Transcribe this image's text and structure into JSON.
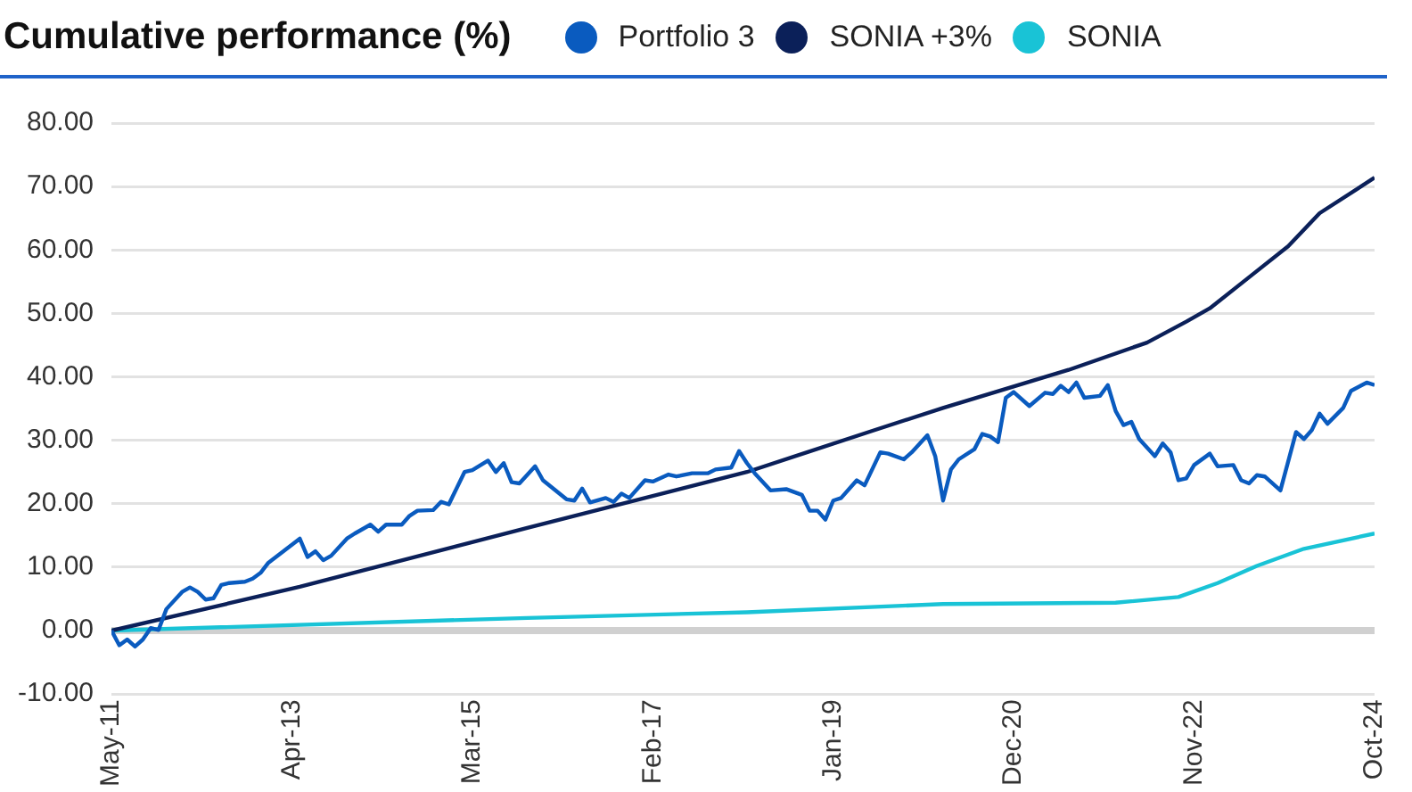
{
  "chart_data": {
    "type": "line",
    "title": "Cumulative performance (%)",
    "legend": "top",
    "grid": "y",
    "marker": "none",
    "line_style": "solid",
    "xlim": [
      "2011-05",
      "2024-10"
    ],
    "xticks": [
      {
        "value": "2011-05",
        "label": "May-11"
      },
      {
        "value": "2013-04",
        "label": "Apr-13"
      },
      {
        "value": "2015-03",
        "label": "Mar-15"
      },
      {
        "value": "2017-02",
        "label": "Feb-17"
      },
      {
        "value": "2019-01",
        "label": "Jan-19"
      },
      {
        "value": "2020-12",
        "label": "Dec-20"
      },
      {
        "value": "2022-11",
        "label": "Nov-22"
      },
      {
        "value": "2024-10",
        "label": "Oct-24"
      }
    ],
    "ylim": [
      -10,
      80
    ],
    "yticks": [
      {
        "value": -10,
        "label": "-10.00"
      },
      {
        "value": 0,
        "label": "0.00"
      },
      {
        "value": 10,
        "label": "10.00"
      },
      {
        "value": 20,
        "label": "20.00"
      },
      {
        "value": 30,
        "label": "30.00"
      },
      {
        "value": 40,
        "label": "40.00"
      },
      {
        "value": 50,
        "label": "50.00"
      },
      {
        "value": 60,
        "label": "60.00"
      },
      {
        "value": 70,
        "label": "70.00"
      },
      {
        "value": 80,
        "label": "80.00"
      }
    ],
    "series": [
      {
        "name": "Portfolio 3",
        "color": "#0a5bbf",
        "x": [
          "2011-05",
          "2011-06",
          "2011-07",
          "2011-08",
          "2011-09",
          "2011-10",
          "2011-11",
          "2011-12",
          "2012-02",
          "2012-03",
          "2012-04",
          "2012-05",
          "2012-06",
          "2012-07",
          "2012-08",
          "2012-10",
          "2012-11",
          "2012-12",
          "2013-01",
          "2013-03",
          "2013-05",
          "2013-06",
          "2013-07",
          "2013-08",
          "2013-09",
          "2013-11",
          "2013-12",
          "2014-02",
          "2014-03",
          "2014-04",
          "2014-06",
          "2014-07",
          "2014-08",
          "2014-10",
          "2014-11",
          "2014-12",
          "2015-02",
          "2015-03",
          "2015-05",
          "2015-06",
          "2015-07",
          "2015-08",
          "2015-09",
          "2015-11",
          "2015-12",
          "2016-03",
          "2016-04",
          "2016-05",
          "2016-06",
          "2016-08",
          "2016-09",
          "2016-10",
          "2016-11",
          "2017-01",
          "2017-02",
          "2017-04",
          "2017-05",
          "2017-07",
          "2017-09",
          "2017-10",
          "2017-12",
          "2018-01",
          "2018-02",
          "2018-03",
          "2018-05",
          "2018-07",
          "2018-09",
          "2018-10",
          "2018-11",
          "2018-12",
          "2019-01",
          "2019-02",
          "2019-04",
          "2019-05",
          "2019-07",
          "2019-08",
          "2019-10",
          "2019-11",
          "2020-01",
          "2020-02",
          "2020-03",
          "2020-04",
          "2020-05",
          "2020-07",
          "2020-08",
          "2020-09",
          "2020-10",
          "2020-11",
          "2020-12",
          "2021-02",
          "2021-04",
          "2021-05",
          "2021-06",
          "2021-07",
          "2021-08",
          "2021-09",
          "2021-11",
          "2021-12",
          "2022-01",
          "2022-02",
          "2022-03",
          "2022-04",
          "2022-06",
          "2022-07",
          "2022-08",
          "2022-09",
          "2022-10",
          "2022-11",
          "2023-01",
          "2023-02",
          "2023-04",
          "2023-05",
          "2023-06",
          "2023-07",
          "2023-08",
          "2023-10",
          "2023-12",
          "2024-01",
          "2024-02",
          "2024-03",
          "2024-04",
          "2024-06",
          "2024-07",
          "2024-09",
          "2024-10"
        ],
        "values": [
          0,
          -2.3,
          -1.4,
          -2.5,
          -1.4,
          0.4,
          0.1,
          3.4,
          6.1,
          6.8,
          6.1,
          4.9,
          5.1,
          7.2,
          7.5,
          7.7,
          8.2,
          9.1,
          10.7,
          12.6,
          14.5,
          11.6,
          12.5,
          11.1,
          11.8,
          14.5,
          15.3,
          16.7,
          15.6,
          16.7,
          16.7,
          18.1,
          18.9,
          19,
          20.3,
          19.9,
          25,
          25.3,
          26.8,
          25,
          26.4,
          23.4,
          23.2,
          25.9,
          23.7,
          20.7,
          20.5,
          22.4,
          20.2,
          20.9,
          20.3,
          21.6,
          20.9,
          23.7,
          23.5,
          24.6,
          24.3,
          24.8,
          24.8,
          25.4,
          25.7,
          28.3,
          26.4,
          24.8,
          22.1,
          22.3,
          21.4,
          18.9,
          18.9,
          17.5,
          20.5,
          20.9,
          23.7,
          22.9,
          28.1,
          27.9,
          27,
          28.1,
          30.8,
          27.5,
          20.5,
          25.4,
          27,
          28.6,
          31,
          30.6,
          29.7,
          36.7,
          37.6,
          35.4,
          37.5,
          37.3,
          38.6,
          37.6,
          39.1,
          36.7,
          37,
          38.7,
          34.6,
          32.4,
          32.9,
          30.2,
          27.5,
          29.5,
          28.1,
          23.7,
          24,
          26.1,
          27.9,
          25.9,
          26.1,
          23.7,
          23.2,
          24.5,
          24.3,
          22.1,
          31.3,
          30.2,
          31.6,
          34.2,
          32.6,
          35.1,
          37.8,
          39.1,
          38.7
        ]
      },
      {
        "name": "SONIA +3%",
        "color": "#0b2059",
        "x": [
          "2011-05",
          "2013-05",
          "2015-10",
          "2018-02",
          "2019-06",
          "2020-03",
          "2021-07",
          "2022-05",
          "2022-10",
          "2023-01",
          "2023-06",
          "2023-11",
          "2024-03",
          "2024-10"
        ],
        "values": [
          0,
          6.9,
          16.2,
          25,
          31.5,
          35.1,
          41.1,
          45.4,
          48.7,
          50.8,
          55.7,
          60.6,
          65.8,
          71.4
        ]
      },
      {
        "name": "SONIA",
        "color": "#19c3d6",
        "x": [
          "2011-05",
          "2015-10",
          "2018-02",
          "2020-03",
          "2022-01",
          "2022-09",
          "2023-02",
          "2023-07",
          "2024-01",
          "2024-10"
        ],
        "values": [
          0,
          2,
          2.9,
          4.2,
          4.4,
          5.3,
          7.5,
          10.2,
          12.9,
          15.3
        ]
      }
    ]
  }
}
